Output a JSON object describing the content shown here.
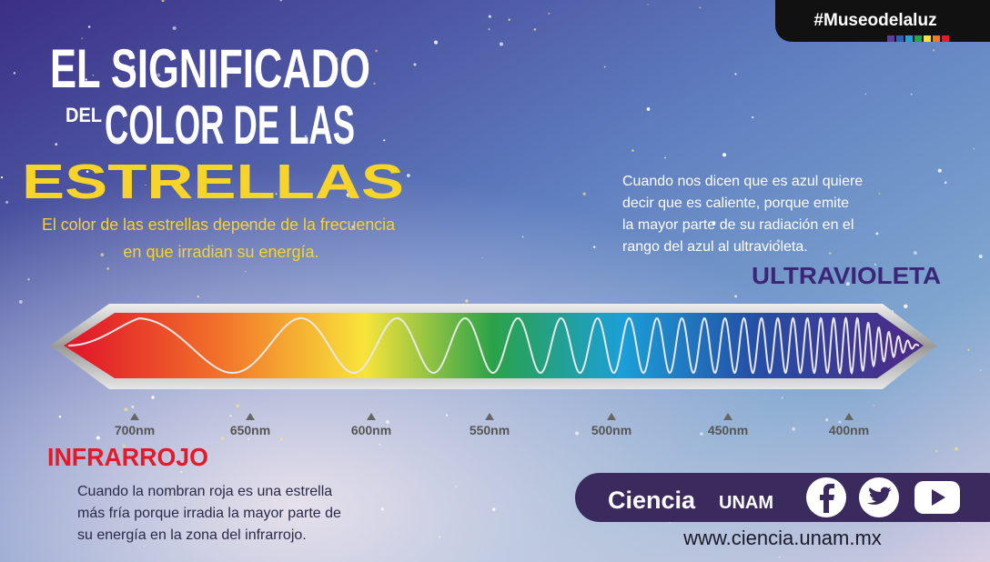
{
  "hashtag": "#Museodelaluz",
  "title": {
    "line1": "EL SIGNIFICADO",
    "small": "DEL",
    "line2": "COLOR DE LAS",
    "highlight": "ESTRELLAS"
  },
  "subtitle": [
    "El color de las estrellas depende de la frecuencia",
    "en que irradian su energía."
  ],
  "ultraviolet": {
    "text": [
      "Cuando nos dicen que es azul quiere",
      "decir que es caliente, porque emite",
      "la mayor parte de su radiación en el",
      "rango del azul al ultravioleta."
    ],
    "label": "ULTRAVIOLETA"
  },
  "wavelengths": [
    "700nm",
    "650nm",
    "600nm",
    "550nm",
    "500nm",
    "450nm",
    "400nm"
  ],
  "infrared": {
    "label": "INFRARROJO",
    "text": [
      "Cuando la nombran roja es una estrella",
      "más fría porque irradia la mayor parte de",
      "su energía en la zona del infrarrojo."
    ]
  },
  "footer": {
    "brand": "Ciencia",
    "brand_sub": "UNAM",
    "url": "www.ciencia.unam.mx"
  }
}
